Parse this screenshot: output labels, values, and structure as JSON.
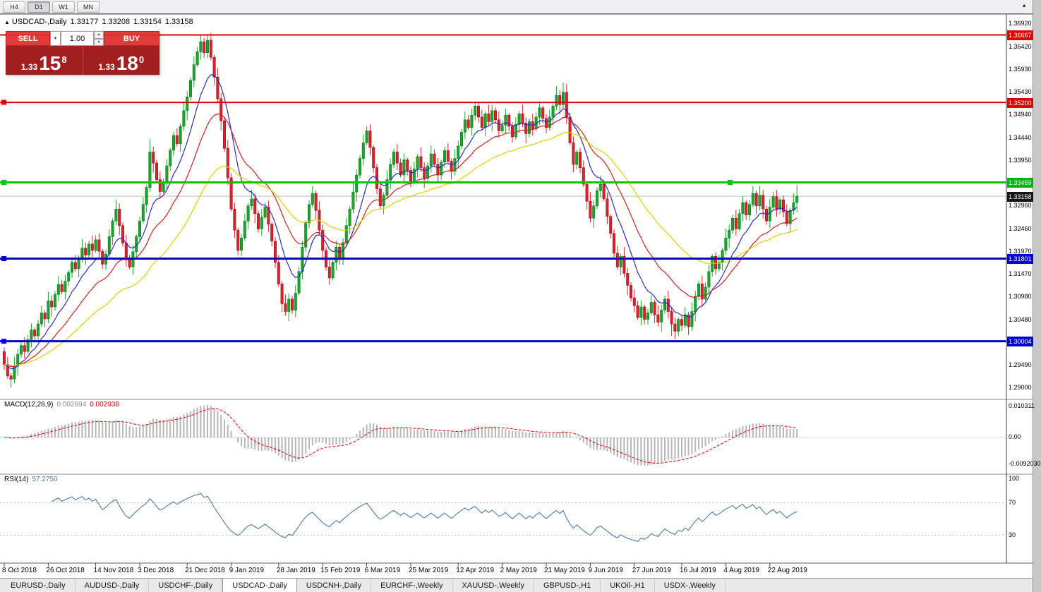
{
  "toolbar": {
    "timeframes": [
      {
        "label": "H4",
        "active": false
      },
      {
        "label": "D1",
        "active": true
      },
      {
        "label": "W1",
        "active": false
      },
      {
        "label": "MN",
        "active": false
      }
    ],
    "corner_icon": "▲"
  },
  "chart_header": {
    "marker": "▲",
    "symbol": "USDCAD-,Daily",
    "open": "1.33177",
    "high": "1.33208",
    "low": "1.33154",
    "close": "1.33158"
  },
  "trade_panel": {
    "sell_label": "SELL",
    "buy_label": "BUY",
    "volume": "1.00",
    "dropdown_icon": "▼",
    "spin_up_icon": "▲",
    "spin_down_icon": "▼",
    "bid": {
      "prefix": "1.33",
      "main": "15",
      "pip": "8"
    },
    "ask": {
      "prefix": "1.33",
      "main": "18",
      "pip": "0"
    }
  },
  "price_axis": {
    "ticks": [
      "1.36920",
      "1.36420",
      "1.35930",
      "1.35430",
      "1.34940",
      "1.34440",
      "1.33950",
      "1.32960",
      "1.32460",
      "1.31970",
      "1.31470",
      "1.30980",
      "1.30480",
      "1.29490",
      "1.29000"
    ],
    "badges": [
      {
        "label": "1.36667",
        "price": 1.36667,
        "bg": "#de0000"
      },
      {
        "label": "1.35200",
        "price": 1.352,
        "bg": "#de0000"
      },
      {
        "label": "1.33459",
        "price": 1.33459,
        "bg": "#00b60d"
      },
      {
        "label": "1.33158",
        "price": 1.33158,
        "bg": "#141414"
      },
      {
        "label": "1.31801",
        "price": 1.31801,
        "bg": "#0202cf"
      },
      {
        "label": "1.30004",
        "price": 1.30004,
        "bg": "#0202cf"
      }
    ]
  },
  "indicators": {
    "macd": {
      "name": "MACD(12,26,9)",
      "main_value": "0.002694",
      "signal_value": "0.002938",
      "axis_top": "0.010311",
      "axis_zero": "0.00",
      "axis_bottom": "-0.0092030",
      "fast": 12,
      "slow": 26,
      "signal_period": 9
    },
    "rsi": {
      "name": "RSI(14)",
      "value": "57.2750",
      "period": 14,
      "levels": [
        70,
        30
      ],
      "axis_labels": [
        "100",
        "70",
        "30"
      ]
    }
  },
  "date_axis": {
    "labels": [
      {
        "text": "8 Oct 2018",
        "bar": 0
      },
      {
        "text": "26 Oct 2018",
        "bar": 13
      },
      {
        "text": "14 Nov 2018",
        "bar": 27
      },
      {
        "text": "3 Dec 2018",
        "bar": 40
      },
      {
        "text": "21 Dec 2018",
        "bar": 54
      },
      {
        "text": "9 Jan 2019",
        "bar": 67
      },
      {
        "text": "28 Jan 2019",
        "bar": 81
      },
      {
        "text": "15 Feb 2019",
        "bar": 94
      },
      {
        "text": "6 Mar 2019",
        "bar": 107
      },
      {
        "text": "25 Mar 2019",
        "bar": 120
      },
      {
        "text": "12 Apr 2019",
        "bar": 134
      },
      {
        "text": "2 May 2019",
        "bar": 147
      },
      {
        "text": "21 May 2019",
        "bar": 160
      },
      {
        "text": "9 Jun 2019",
        "bar": 173
      },
      {
        "text": "27 Jun 2019",
        "bar": 186
      },
      {
        "text": "16 Jul 2019",
        "bar": 200
      },
      {
        "text": "4 Aug 2019",
        "bar": 213
      },
      {
        "text": "22 Aug 2019",
        "bar": 226
      }
    ]
  },
  "tabs": [
    {
      "label": "EURUSD-,Daily",
      "active": false
    },
    {
      "label": "AUDUSD-,Daily",
      "active": false
    },
    {
      "label": "USDCHF-,Daily",
      "active": false
    },
    {
      "label": "USDCAD-,Daily",
      "active": true
    },
    {
      "label": "USDCNH-,Daily",
      "active": false
    },
    {
      "label": "EURCHF-,Weekly",
      "active": false
    },
    {
      "label": "XAUUSD-,Weekly",
      "active": false
    },
    {
      "label": "GBPUSD-,H1",
      "active": false
    },
    {
      "label": "UKOil-,H1",
      "active": false
    },
    {
      "label": "USDX-,Weekly",
      "active": false
    }
  ],
  "chart_data": {
    "type": "candlestick",
    "symbol": "USDCAD",
    "timeframe": "Daily",
    "title": "USDCAD-,Daily",
    "ohlc_last": {
      "open": 1.33177,
      "high": 1.33208,
      "low": 1.33154,
      "close": 1.33158
    },
    "price_range_visible": [
      1.2871,
      1.3712
    ],
    "current_price": {
      "value": 1.33158,
      "label": "1.33158"
    },
    "hlines": [
      {
        "price": 1.36667,
        "label": "1.36667",
        "color": "#de0000",
        "width": 2,
        "markers": []
      },
      {
        "price": 1.352,
        "label": "1.35200",
        "color": "#de0000",
        "width": 2,
        "markers": [
          5
        ]
      },
      {
        "price": 1.33459,
        "label": "1.33459",
        "color": "#00c40e",
        "width": 3,
        "markers": [
          5,
          1034
        ]
      },
      {
        "price": 1.31801,
        "label": "1.31801",
        "color": "#0202cf",
        "width": 3,
        "markers": [
          5
        ]
      },
      {
        "price": 1.30004,
        "label": "1.30004",
        "color": "#0202cf",
        "width": 3,
        "markers": [
          5
        ]
      }
    ],
    "moving_averages": [
      {
        "period": 10,
        "color": "#2a2ac8"
      },
      {
        "period": 22,
        "color": "#cf2020"
      },
      {
        "period": 45,
        "color": "#e3ce00"
      }
    ],
    "colors": {
      "up": "#1ba62b",
      "down": "#d9232e",
      "up_border": "#0d7c1e",
      "down_border": "#9c1016"
    },
    "macd_panel": {
      "histogram_color": "#b6b6b6",
      "signal_color": "#e00000"
    },
    "rsi_panel": {
      "line_color": "#4a7aa8"
    },
    "candles": {
      "first_open": 1.2978,
      "wick_unit": 0.0001,
      "wick_high_pattern": [
        9,
        16,
        6,
        20,
        12,
        7,
        18,
        10,
        14,
        5
      ],
      "wick_low_pattern": [
        12,
        6,
        18,
        9,
        21,
        8,
        15,
        5,
        17,
        11
      ],
      "overrides": {
        "2": {
          "l": 1.2903
        },
        "43": {
          "h": 1.344
        },
        "58": {
          "h": 1.3664
        },
        "59": {
          "h": 1.366
        },
        "60": {
          "h": 1.3665
        },
        "139": {
          "h": 1.352
        },
        "140": {
          "h": 1.3522
        },
        "165": {
          "h": 1.3563
        },
        "166": {
          "h": 1.355
        },
        "197": {
          "l": 1.3012
        },
        "198": {
          "l": 1.3006
        },
        "234": {
          "h": 1.3341,
          "l": 1.3286
        }
      },
      "closes": [
        1.295,
        1.2925,
        1.2918,
        1.2946,
        1.2972,
        1.2991,
        1.2978,
        1.3004,
        1.3025,
        1.3012,
        1.3038,
        1.3062,
        1.3049,
        1.3088,
        1.3075,
        1.3102,
        1.3124,
        1.3108,
        1.3131,
        1.315,
        1.3172,
        1.3158,
        1.3181,
        1.3203,
        1.3188,
        1.3212,
        1.3198,
        1.3221,
        1.3196,
        1.3168,
        1.319,
        1.3228,
        1.3262,
        1.3288,
        1.3252,
        1.3214,
        1.3178,
        1.3162,
        1.3195,
        1.3228,
        1.3262,
        1.3298,
        1.3335,
        1.3412,
        1.3388,
        1.3352,
        1.3326,
        1.3344,
        1.3382,
        1.3416,
        1.3448,
        1.343,
        1.3468,
        1.3502,
        1.3532,
        1.3568,
        1.3602,
        1.363,
        1.3652,
        1.3628,
        1.3655,
        1.3618,
        1.3575,
        1.3528,
        1.348,
        1.342,
        1.3356,
        1.3288,
        1.3242,
        1.3198,
        1.3225,
        1.3262,
        1.3295,
        1.331,
        1.3278,
        1.3245,
        1.327,
        1.3292,
        1.3255,
        1.3218,
        1.3172,
        1.3125,
        1.3082,
        1.3065,
        1.3092,
        1.3068,
        1.3105,
        1.3152,
        1.3205,
        1.3258,
        1.3298,
        1.3322,
        1.3285,
        1.3242,
        1.3198,
        1.3162,
        1.3138,
        1.3172,
        1.3205,
        1.3178,
        1.3215,
        1.3252,
        1.3288,
        1.3325,
        1.3362,
        1.3398,
        1.3432,
        1.3458,
        1.3422,
        1.3378,
        1.3332,
        1.3295,
        1.3318,
        1.3352,
        1.3385,
        1.3412,
        1.3388,
        1.3362,
        1.3395,
        1.3372,
        1.3348,
        1.3375,
        1.3402,
        1.3378,
        1.3355,
        1.3382,
        1.3408,
        1.3385,
        1.3362,
        1.339,
        1.3415,
        1.3392,
        1.337,
        1.3398,
        1.3425,
        1.3455,
        1.3482,
        1.3465,
        1.3492,
        1.3512,
        1.3488,
        1.3465,
        1.3495,
        1.3478,
        1.3502,
        1.3482,
        1.3458,
        1.347,
        1.3492,
        1.3468,
        1.3445,
        1.3472,
        1.3495,
        1.3475,
        1.3452,
        1.3478,
        1.3462,
        1.3488,
        1.3508,
        1.3485,
        1.3465,
        1.3488,
        1.3512,
        1.3535,
        1.3515,
        1.3542,
        1.3488,
        1.3432,
        1.3385,
        1.3412,
        1.3378,
        1.3342,
        1.3305,
        1.3268,
        1.3295,
        1.3328,
        1.3342,
        1.331,
        1.3272,
        1.3235,
        1.3192,
        1.3162,
        1.3185,
        1.3148,
        1.3122,
        1.3095,
        1.3078,
        1.3052,
        1.3075,
        1.3048,
        1.3062,
        1.3085,
        1.3058,
        1.3042,
        1.3068,
        1.3092,
        1.3065,
        1.3038,
        1.3022,
        1.3048,
        1.3035,
        1.3058,
        1.3032,
        1.3065,
        1.3098,
        1.3125,
        1.3092,
        1.3118,
        1.3152,
        1.3185,
        1.3158,
        1.3172,
        1.3198,
        1.3225,
        1.3242,
        1.3268,
        1.3245,
        1.3278,
        1.3302,
        1.3275,
        1.3298,
        1.3322,
        1.3295,
        1.3318,
        1.3288,
        1.3262,
        1.3292,
        1.3315,
        1.3288,
        1.3308,
        1.3282,
        1.3256,
        1.3285,
        1.3302,
        1.33158
      ]
    }
  }
}
